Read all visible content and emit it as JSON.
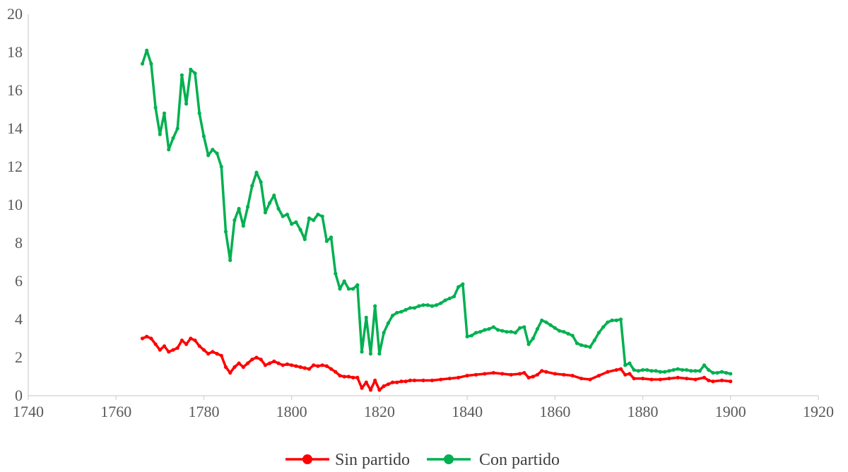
{
  "chart_data": {
    "type": "line",
    "title": "",
    "xlabel": "",
    "ylabel": "",
    "xlim": [
      1740,
      1920
    ],
    "ylim": [
      0,
      20
    ],
    "xticks": [
      1740,
      1760,
      1780,
      1800,
      1820,
      1840,
      1860,
      1880,
      1900,
      1920
    ],
    "yticks": [
      0,
      2,
      4,
      6,
      8,
      10,
      12,
      14,
      16,
      18,
      20
    ],
    "xtick_labels": [
      "1740",
      "1760",
      "1780",
      "1800",
      "1820",
      "1840",
      "1860",
      "1880",
      "1900",
      "1920"
    ],
    "ytick_labels": [
      "0",
      "2",
      "4",
      "6",
      "8",
      "10",
      "12",
      "14",
      "16",
      "18",
      "20"
    ],
    "grid": false,
    "legend_position": "bottom",
    "series": [
      {
        "name": "Sin partido",
        "color": "#ff0000",
        "points": [
          [
            1766,
            3.0
          ],
          [
            1767,
            3.1
          ],
          [
            1768,
            3.0
          ],
          [
            1769,
            2.7
          ],
          [
            1770,
            2.4
          ],
          [
            1771,
            2.6
          ],
          [
            1772,
            2.3
          ],
          [
            1773,
            2.4
          ],
          [
            1774,
            2.5
          ],
          [
            1775,
            2.9
          ],
          [
            1776,
            2.7
          ],
          [
            1777,
            3.0
          ],
          [
            1778,
            2.9
          ],
          [
            1779,
            2.6
          ],
          [
            1780,
            2.4
          ],
          [
            1781,
            2.2
          ],
          [
            1782,
            2.3
          ],
          [
            1783,
            2.2
          ],
          [
            1784,
            2.1
          ],
          [
            1785,
            1.5
          ],
          [
            1786,
            1.2
          ],
          [
            1787,
            1.5
          ],
          [
            1788,
            1.7
          ],
          [
            1789,
            1.5
          ],
          [
            1790,
            1.7
          ],
          [
            1791,
            1.9
          ],
          [
            1792,
            2.0
          ],
          [
            1793,
            1.9
          ],
          [
            1794,
            1.6
          ],
          [
            1795,
            1.7
          ],
          [
            1796,
            1.8
          ],
          [
            1797,
            1.7
          ],
          [
            1798,
            1.6
          ],
          [
            1799,
            1.65
          ],
          [
            1800,
            1.6
          ],
          [
            1801,
            1.55
          ],
          [
            1802,
            1.5
          ],
          [
            1803,
            1.45
          ],
          [
            1804,
            1.4
          ],
          [
            1805,
            1.6
          ],
          [
            1806,
            1.55
          ],
          [
            1807,
            1.6
          ],
          [
            1808,
            1.55
          ],
          [
            1809,
            1.4
          ],
          [
            1810,
            1.25
          ],
          [
            1811,
            1.05
          ],
          [
            1812,
            1.0
          ],
          [
            1813,
            1.0
          ],
          [
            1814,
            0.95
          ],
          [
            1815,
            0.95
          ],
          [
            1816,
            0.4
          ],
          [
            1817,
            0.7
          ],
          [
            1818,
            0.3
          ],
          [
            1819,
            0.8
          ],
          [
            1820,
            0.3
          ],
          [
            1821,
            0.5
          ],
          [
            1822,
            0.6
          ],
          [
            1823,
            0.7
          ],
          [
            1824,
            0.7
          ],
          [
            1825,
            0.75
          ],
          [
            1826,
            0.75
          ],
          [
            1827,
            0.8
          ],
          [
            1828,
            0.8
          ],
          [
            1830,
            0.8
          ],
          [
            1832,
            0.8
          ],
          [
            1834,
            0.85
          ],
          [
            1836,
            0.9
          ],
          [
            1838,
            0.95
          ],
          [
            1840,
            1.05
          ],
          [
            1842,
            1.1
          ],
          [
            1844,
            1.15
          ],
          [
            1846,
            1.2
          ],
          [
            1848,
            1.15
          ],
          [
            1850,
            1.1
          ],
          [
            1852,
            1.15
          ],
          [
            1853,
            1.2
          ],
          [
            1854,
            0.95
          ],
          [
            1855,
            1.0
          ],
          [
            1856,
            1.1
          ],
          [
            1857,
            1.3
          ],
          [
            1858,
            1.25
          ],
          [
            1860,
            1.15
          ],
          [
            1862,
            1.1
          ],
          [
            1864,
            1.05
          ],
          [
            1866,
            0.9
          ],
          [
            1868,
            0.85
          ],
          [
            1870,
            1.05
          ],
          [
            1872,
            1.25
          ],
          [
            1874,
            1.35
          ],
          [
            1875,
            1.4
          ],
          [
            1876,
            1.1
          ],
          [
            1877,
            1.15
          ],
          [
            1878,
            0.9
          ],
          [
            1880,
            0.9
          ],
          [
            1882,
            0.85
          ],
          [
            1884,
            0.85
          ],
          [
            1886,
            0.9
          ],
          [
            1888,
            0.95
          ],
          [
            1890,
            0.9
          ],
          [
            1892,
            0.85
          ],
          [
            1894,
            0.95
          ],
          [
            1895,
            0.8
          ],
          [
            1896,
            0.75
          ],
          [
            1898,
            0.8
          ],
          [
            1900,
            0.75
          ]
        ]
      },
      {
        "name": "Con partido",
        "color": "#00b050",
        "points": [
          [
            1766,
            17.4
          ],
          [
            1767,
            18.1
          ],
          [
            1768,
            17.4
          ],
          [
            1769,
            15.1
          ],
          [
            1770,
            13.7
          ],
          [
            1771,
            14.8
          ],
          [
            1772,
            12.9
          ],
          [
            1773,
            13.5
          ],
          [
            1774,
            14.0
          ],
          [
            1775,
            16.8
          ],
          [
            1776,
            15.3
          ],
          [
            1777,
            17.1
          ],
          [
            1778,
            16.9
          ],
          [
            1779,
            14.8
          ],
          [
            1780,
            13.6
          ],
          [
            1781,
            12.6
          ],
          [
            1782,
            12.9
          ],
          [
            1783,
            12.7
          ],
          [
            1784,
            12.0
          ],
          [
            1785,
            8.6
          ],
          [
            1786,
            7.1
          ],
          [
            1787,
            9.2
          ],
          [
            1788,
            9.8
          ],
          [
            1789,
            8.9
          ],
          [
            1790,
            9.9
          ],
          [
            1791,
            11.0
          ],
          [
            1792,
            11.7
          ],
          [
            1793,
            11.2
          ],
          [
            1794,
            9.6
          ],
          [
            1795,
            10.1
          ],
          [
            1796,
            10.5
          ],
          [
            1797,
            9.8
          ],
          [
            1798,
            9.4
          ],
          [
            1799,
            9.5
          ],
          [
            1800,
            9.0
          ],
          [
            1801,
            9.1
          ],
          [
            1802,
            8.7
          ],
          [
            1803,
            8.2
          ],
          [
            1804,
            9.3
          ],
          [
            1805,
            9.2
          ],
          [
            1806,
            9.5
          ],
          [
            1807,
            9.4
          ],
          [
            1808,
            8.1
          ],
          [
            1809,
            8.3
          ],
          [
            1810,
            6.4
          ],
          [
            1811,
            5.6
          ],
          [
            1812,
            6.0
          ],
          [
            1813,
            5.6
          ],
          [
            1814,
            5.6
          ],
          [
            1815,
            5.8
          ],
          [
            1816,
            2.3
          ],
          [
            1817,
            4.1
          ],
          [
            1818,
            2.2
          ],
          [
            1819,
            4.7
          ],
          [
            1820,
            2.2
          ],
          [
            1821,
            3.3
          ],
          [
            1822,
            3.8
          ],
          [
            1823,
            4.2
          ],
          [
            1824,
            4.35
          ],
          [
            1825,
            4.4
          ],
          [
            1826,
            4.5
          ],
          [
            1827,
            4.6
          ],
          [
            1828,
            4.6
          ],
          [
            1829,
            4.7
          ],
          [
            1830,
            4.75
          ],
          [
            1831,
            4.75
          ],
          [
            1832,
            4.7
          ],
          [
            1833,
            4.75
          ],
          [
            1834,
            4.85
          ],
          [
            1835,
            5.0
          ],
          [
            1836,
            5.1
          ],
          [
            1837,
            5.2
          ],
          [
            1838,
            5.7
          ],
          [
            1839,
            5.85
          ],
          [
            1840,
            3.1
          ],
          [
            1841,
            3.15
          ],
          [
            1842,
            3.3
          ],
          [
            1843,
            3.35
          ],
          [
            1844,
            3.45
          ],
          [
            1845,
            3.5
          ],
          [
            1846,
            3.6
          ],
          [
            1847,
            3.45
          ],
          [
            1848,
            3.4
          ],
          [
            1849,
            3.35
          ],
          [
            1850,
            3.35
          ],
          [
            1851,
            3.3
          ],
          [
            1852,
            3.55
          ],
          [
            1853,
            3.6
          ],
          [
            1854,
            2.7
          ],
          [
            1855,
            3.0
          ],
          [
            1856,
            3.5
          ],
          [
            1857,
            3.95
          ],
          [
            1858,
            3.85
          ],
          [
            1859,
            3.7
          ],
          [
            1860,
            3.55
          ],
          [
            1861,
            3.4
          ],
          [
            1862,
            3.35
          ],
          [
            1863,
            3.25
          ],
          [
            1864,
            3.15
          ],
          [
            1865,
            2.75
          ],
          [
            1866,
            2.65
          ],
          [
            1867,
            2.6
          ],
          [
            1868,
            2.55
          ],
          [
            1869,
            2.9
          ],
          [
            1870,
            3.3
          ],
          [
            1871,
            3.6
          ],
          [
            1872,
            3.85
          ],
          [
            1873,
            3.95
          ],
          [
            1874,
            3.95
          ],
          [
            1875,
            4.0
          ],
          [
            1876,
            1.6
          ],
          [
            1877,
            1.7
          ],
          [
            1878,
            1.35
          ],
          [
            1879,
            1.3
          ],
          [
            1880,
            1.35
          ],
          [
            1881,
            1.35
          ],
          [
            1882,
            1.3
          ],
          [
            1883,
            1.3
          ],
          [
            1884,
            1.25
          ],
          [
            1885,
            1.25
          ],
          [
            1886,
            1.3
          ],
          [
            1887,
            1.35
          ],
          [
            1888,
            1.4
          ],
          [
            1889,
            1.35
          ],
          [
            1890,
            1.35
          ],
          [
            1891,
            1.3
          ],
          [
            1892,
            1.3
          ],
          [
            1893,
            1.3
          ],
          [
            1894,
            1.6
          ],
          [
            1895,
            1.35
          ],
          [
            1896,
            1.2
          ],
          [
            1897,
            1.2
          ],
          [
            1898,
            1.25
          ],
          [
            1899,
            1.2
          ],
          [
            1900,
            1.15
          ]
        ]
      }
    ]
  }
}
